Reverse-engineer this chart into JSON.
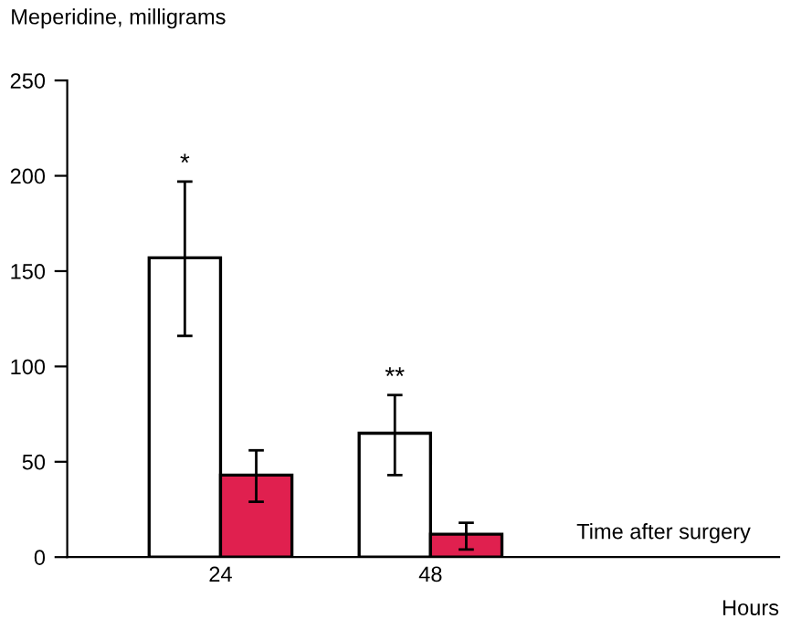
{
  "chart_data": {
    "type": "bar",
    "ylabel": "Meperidine, milligrams",
    "categories": [
      "24",
      "48"
    ],
    "series": [
      {
        "color": "#ffffff",
        "values": [
          157,
          65
        ],
        "errors": [
          [
            116,
            197
          ],
          [
            43,
            85
          ]
        ]
      },
      {
        "color": "#e0204f",
        "values": [
          43,
          12
        ],
        "errors": [
          [
            29,
            56
          ],
          [
            4,
            18
          ]
        ]
      }
    ],
    "ylim": [
      0,
      250
    ],
    "yticks": [
      0,
      50,
      100,
      150,
      200,
      250
    ],
    "grid": false,
    "legend": false,
    "annotations": [
      "*",
      "**",
      "Time after surgery",
      "Hours"
    ]
  }
}
